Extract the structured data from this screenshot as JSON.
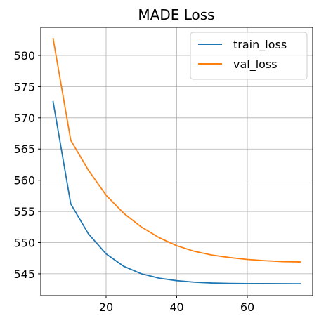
{
  "chart_data": {
    "type": "line",
    "title": "MADE Loss",
    "xlabel": "",
    "ylabel": "",
    "xlim": [
      1.5,
      78.5
    ],
    "ylim": [
      541.5,
      584.5
    ],
    "xticks": [
      20,
      40,
      60
    ],
    "yticks": [
      545,
      550,
      555,
      560,
      565,
      570,
      575,
      580
    ],
    "grid": true,
    "legend": "top-right",
    "series": [
      {
        "name": "train_loss",
        "color": "#1f77b4",
        "x": [
          5,
          10,
          15,
          20,
          25,
          30,
          35,
          40,
          45,
          50,
          55,
          60,
          65,
          70,
          75
        ],
        "y": [
          572.6,
          556.2,
          551.4,
          548.2,
          546.2,
          545.0,
          544.3,
          543.9,
          543.65,
          543.52,
          543.46,
          543.43,
          543.42,
          543.41,
          543.4
        ]
      },
      {
        "name": "val_loss",
        "color": "#ff7f0e",
        "x": [
          5,
          10,
          15,
          20,
          25,
          30,
          35,
          40,
          45,
          50,
          55,
          60,
          65,
          70,
          75
        ],
        "y": [
          582.7,
          566.4,
          561.6,
          557.6,
          554.7,
          552.5,
          550.8,
          549.5,
          548.6,
          548.0,
          547.6,
          547.3,
          547.1,
          546.95,
          546.9
        ]
      }
    ]
  }
}
